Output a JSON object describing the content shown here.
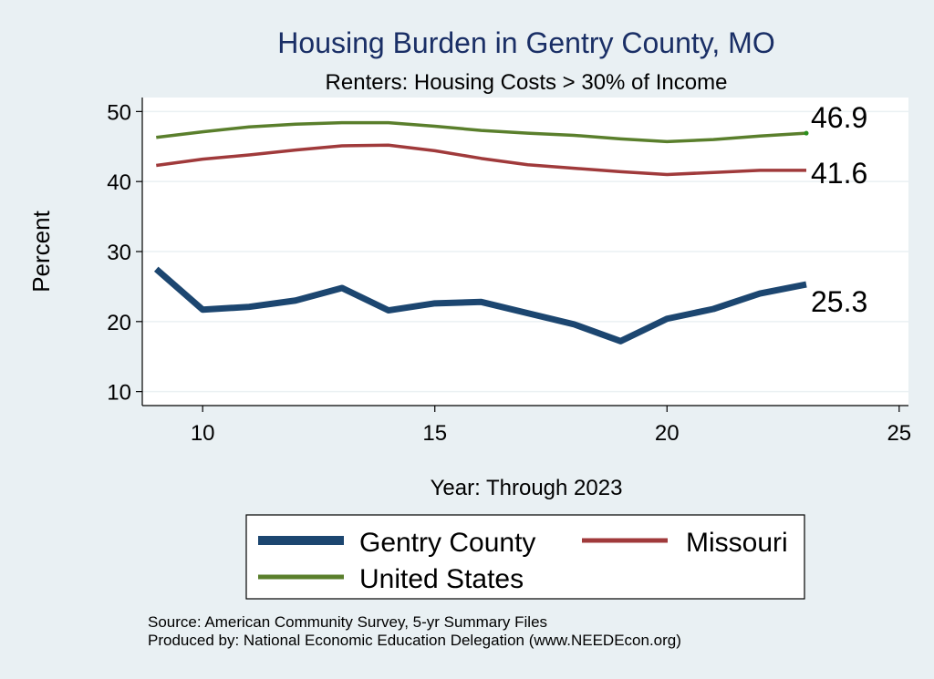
{
  "chart_data": {
    "type": "line",
    "title": "Housing Burden in Gentry County, MO",
    "subtitle": "Renters: Housing Costs > 30% of Income",
    "xlabel": "Year: Through 2023",
    "ylabel": "Percent",
    "xlim": [
      8.7,
      25.2
    ],
    "ylim": [
      8,
      52
    ],
    "xticks": [
      10,
      15,
      20,
      25
    ],
    "yticks": [
      10,
      20,
      30,
      40,
      50
    ],
    "grid": true,
    "x": [
      9,
      10,
      11,
      12,
      13,
      14,
      15,
      16,
      17,
      18,
      19,
      20,
      21,
      22,
      23
    ],
    "series": [
      {
        "name": "Gentry County",
        "color": "#1c4670",
        "values": [
          27.5,
          21.7,
          22.1,
          23.0,
          24.8,
          21.6,
          22.6,
          22.8,
          21.2,
          19.6,
          17.2,
          20.4,
          21.8,
          24.0,
          25.3
        ],
        "end_label": "25.3"
      },
      {
        "name": "Missouri",
        "color": "#a03a3b",
        "values": [
          42.3,
          43.2,
          43.8,
          44.5,
          45.1,
          45.2,
          44.4,
          43.3,
          42.4,
          41.9,
          41.4,
          41.0,
          41.3,
          41.6,
          41.6
        ],
        "end_label": "41.6"
      },
      {
        "name": "United States",
        "color": "#5a7f2c",
        "values": [
          46.3,
          47.1,
          47.8,
          48.2,
          48.4,
          48.4,
          47.9,
          47.3,
          46.9,
          46.6,
          46.1,
          45.7,
          46.0,
          46.5,
          46.9
        ],
        "end_label": "46.9"
      }
    ],
    "legend": {
      "position": "bottom",
      "entries": [
        "Gentry County",
        "Missouri",
        "United States"
      ]
    },
    "notes": [
      "Source: American Community Survey, 5-yr Summary Files",
      "Produced by: National Economic Education Delegation (www.NEEDEcon.org)"
    ]
  }
}
